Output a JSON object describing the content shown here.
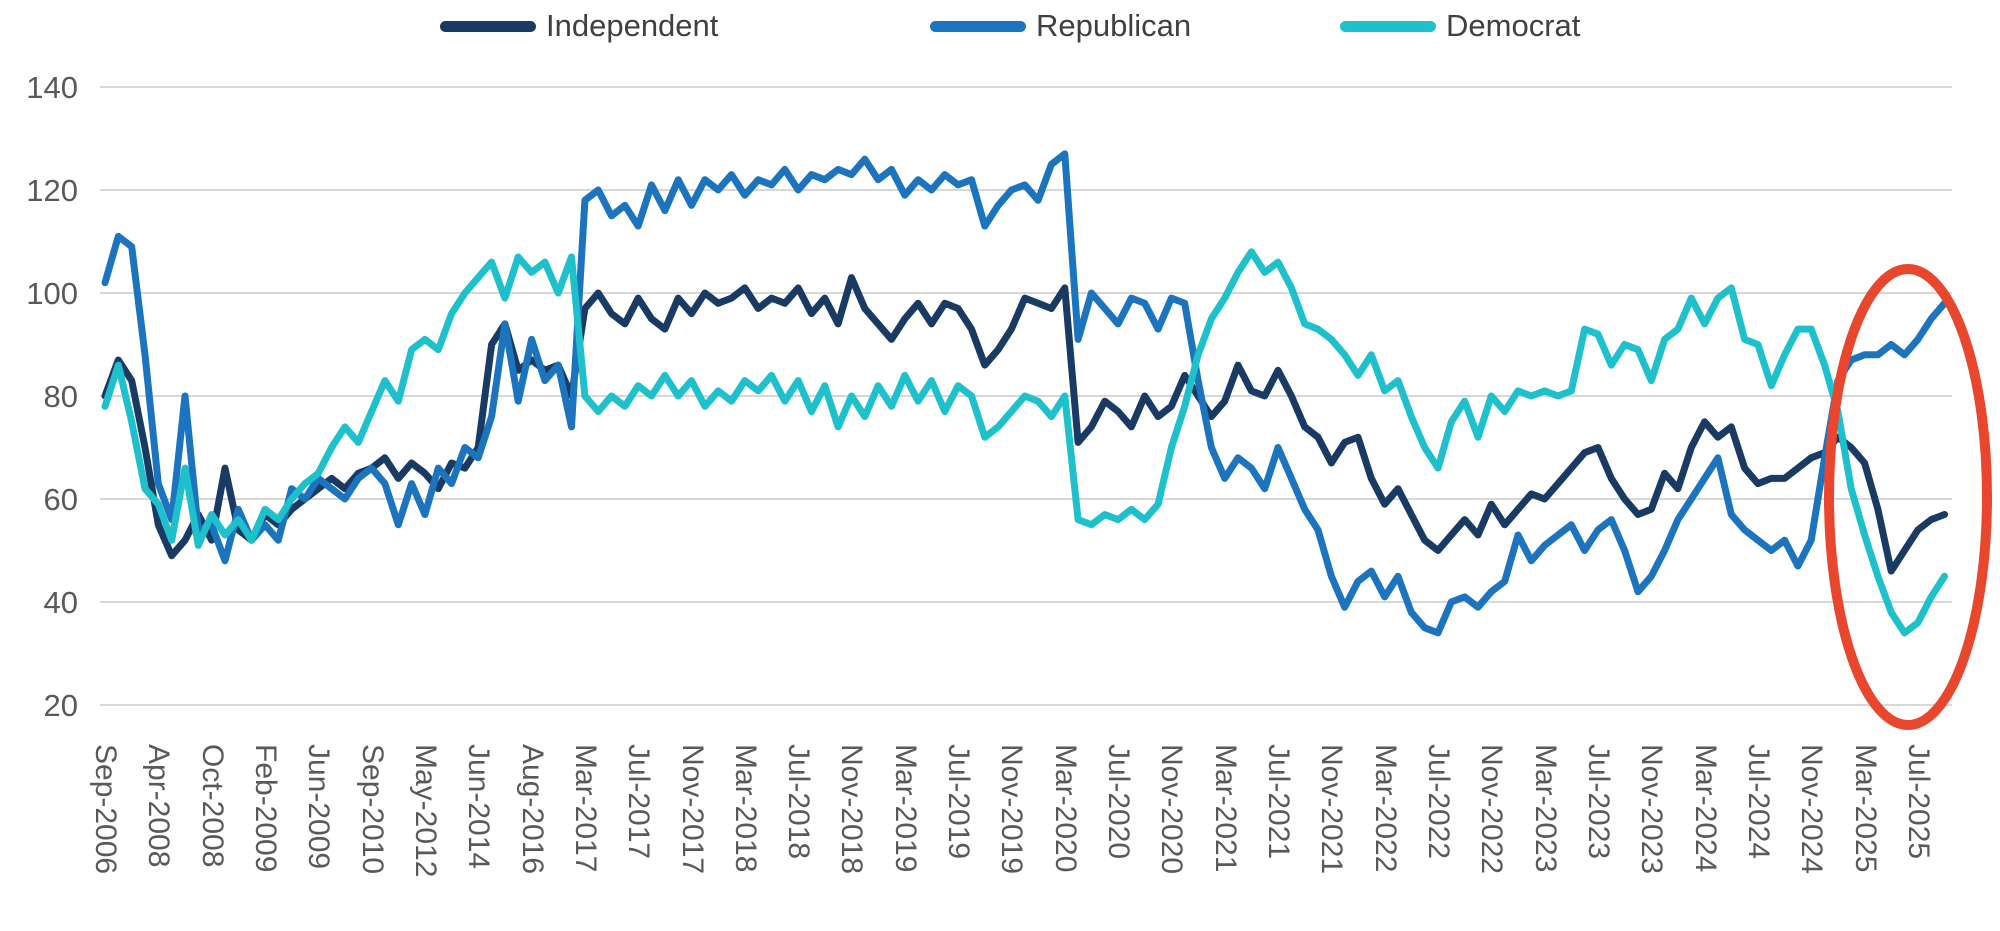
{
  "legend": {
    "items": [
      {
        "label": "Independent",
        "color": "#193A63"
      },
      {
        "label": "Republican",
        "color": "#1B74BD"
      },
      {
        "label": "Democrat",
        "color": "#1EC0CC"
      }
    ]
  },
  "chart_data": {
    "type": "line",
    "title": "",
    "xlabel": "",
    "ylabel": "",
    "ylim": [
      20,
      140
    ],
    "yticks": [
      20,
      40,
      60,
      80,
      100,
      120,
      140
    ],
    "grid": "horizontal",
    "gridline_color": "#D8D8D8",
    "axis_text_color": "#595959",
    "legend_position": "top",
    "points_per_label": 4,
    "x_labels": [
      "Sep-2006",
      "Apr-2008",
      "Oct-2008",
      "Feb-2009",
      "Jun-2009",
      "Sep-2010",
      "May-2012",
      "Jun-2014",
      "Aug-2016",
      "Mar-2017",
      "Jul-2017",
      "Nov-2017",
      "Mar-2018",
      "Jul-2018",
      "Nov-2018",
      "Mar-2019",
      "Jul-2019",
      "Nov-2019",
      "Mar-2020",
      "Jul-2020",
      "Nov-2020",
      "Mar-2021",
      "Jul-2021",
      "Nov-2021",
      "Mar-2022",
      "Jul-2022",
      "Nov-2022",
      "Mar-2023",
      "Jul-2023",
      "Nov-2023",
      "Mar-2024",
      "Jul-2024",
      "Nov-2024",
      "Mar-2025",
      "Jul-2025"
    ],
    "series": [
      {
        "name": "Independent",
        "color": "#193A63",
        "values": [
          80,
          87,
          83,
          70,
          55,
          49,
          52,
          57,
          52,
          66,
          54,
          52,
          57,
          55,
          58,
          60,
          62,
          64,
          62,
          65,
          66,
          68,
          64,
          67,
          65,
          62,
          67,
          66,
          70,
          90,
          94,
          85,
          87,
          85,
          86,
          80,
          97,
          100,
          96,
          94,
          99,
          95,
          93,
          99,
          96,
          100,
          98,
          99,
          101,
          97,
          99,
          98,
          101,
          96,
          99,
          94,
          103,
          97,
          94,
          91,
          95,
          98,
          94,
          98,
          97,
          93,
          86,
          89,
          93,
          99,
          98,
          97,
          101,
          71,
          74,
          79,
          77,
          74,
          80,
          76,
          78,
          84,
          80,
          76,
          79,
          86,
          81,
          80,
          85,
          80,
          74,
          72,
          67,
          71,
          72,
          64,
          59,
          62,
          57,
          52,
          50,
          53,
          56,
          53,
          59,
          55,
          58,
          61,
          60,
          63,
          66,
          69,
          70,
          64,
          60,
          57,
          58,
          65,
          62,
          70,
          75,
          72,
          74,
          66,
          63,
          64,
          64,
          66,
          68,
          69,
          72,
          70,
          67,
          58,
          46,
          50,
          54,
          56,
          57
        ]
      },
      {
        "name": "Republican",
        "color": "#1B74BD",
        "values": [
          102,
          111,
          109,
          88,
          63,
          56,
          80,
          54,
          55,
          48,
          58,
          52,
          55,
          52,
          62,
          60,
          64,
          62,
          60,
          64,
          66,
          63,
          55,
          63,
          57,
          66,
          63,
          70,
          68,
          76,
          94,
          79,
          91,
          83,
          86,
          74,
          118,
          120,
          115,
          117,
          113,
          121,
          116,
          122,
          117,
          122,
          120,
          123,
          119,
          122,
          121,
          124,
          120,
          123,
          122,
          124,
          123,
          126,
          122,
          124,
          119,
          122,
          120,
          123,
          121,
          122,
          113,
          117,
          120,
          121,
          118,
          125,
          127,
          91,
          100,
          97,
          94,
          99,
          98,
          93,
          99,
          98,
          83,
          70,
          64,
          68,
          66,
          62,
          70,
          64,
          58,
          54,
          45,
          39,
          44,
          46,
          41,
          45,
          38,
          35,
          34,
          40,
          41,
          39,
          42,
          44,
          53,
          48,
          51,
          53,
          55,
          50,
          54,
          56,
          50,
          42,
          45,
          50,
          56,
          60,
          64,
          68,
          57,
          54,
          52,
          50,
          52,
          47,
          52,
          68,
          83,
          87,
          88,
          88,
          90,
          88,
          91,
          95,
          98
        ]
      },
      {
        "name": "Democrat",
        "color": "#1EC0CC",
        "values": [
          78,
          86,
          75,
          62,
          59,
          52,
          66,
          51,
          57,
          53,
          56,
          52,
          58,
          56,
          60,
          63,
          65,
          70,
          74,
          71,
          77,
          83,
          79,
          89,
          91,
          89,
          96,
          100,
          103,
          106,
          99,
          107,
          104,
          106,
          100,
          107,
          80,
          77,
          80,
          78,
          82,
          80,
          84,
          80,
          83,
          78,
          81,
          79,
          83,
          81,
          84,
          79,
          83,
          77,
          82,
          74,
          80,
          76,
          82,
          78,
          84,
          79,
          83,
          77,
          82,
          80,
          72,
          74,
          77,
          80,
          79,
          76,
          80,
          56,
          55,
          57,
          56,
          58,
          56,
          59,
          70,
          78,
          88,
          95,
          99,
          104,
          108,
          104,
          106,
          101,
          94,
          93,
          91,
          88,
          84,
          88,
          81,
          83,
          76,
          70,
          66,
          75,
          79,
          72,
          80,
          77,
          81,
          80,
          81,
          80,
          81,
          93,
          92,
          86,
          90,
          89,
          83,
          91,
          93,
          99,
          94,
          99,
          101,
          91,
          90,
          82,
          88,
          93,
          93,
          86,
          77,
          62,
          53,
          45,
          38,
          34,
          36,
          41,
          45
        ]
      }
    ],
    "annotation": {
      "shape": "ellipse",
      "color": "#E8472E",
      "x_range": [
        "Nov-2024",
        "Jul-2025"
      ]
    }
  }
}
